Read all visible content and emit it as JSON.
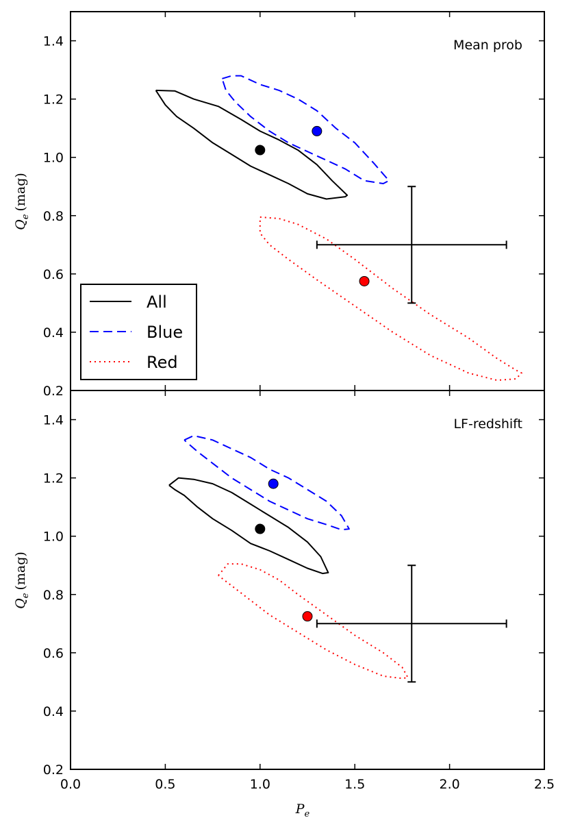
{
  "chart_data": [
    {
      "type": "scatter",
      "title": "Mean prob",
      "xlabel": "",
      "ylabel": "Q_e (mag)",
      "ylabel_main": "Q",
      "ylabel_sub": "e",
      "ylabel_unit": "(mag)",
      "xlim": [
        0.0,
        2.5
      ],
      "ylim": [
        0.2,
        1.5
      ],
      "x_ticks": [],
      "y_ticks": [
        "0.2",
        "0.4",
        "0.6",
        "0.8",
        "1.0",
        "1.2",
        "1.4"
      ],
      "legend": {
        "position": "lower-left",
        "entries": [
          {
            "label": "All",
            "style": "solid",
            "color": "#000000"
          },
          {
            "label": "Blue",
            "style": "dashed",
            "color": "#0000ff"
          },
          {
            "label": "Red",
            "style": "dotted",
            "color": "#ff0000"
          }
        ]
      },
      "series": [
        {
          "name": "All",
          "style": "solid",
          "color": "#000000",
          "point": [
            1.0,
            1.025
          ],
          "contour": [
            [
              0.45,
              1.23
            ],
            [
              0.55,
              1.228
            ],
            [
              0.65,
              1.2
            ],
            [
              0.78,
              1.175
            ],
            [
              0.9,
              1.13
            ],
            [
              1.0,
              1.09
            ],
            [
              1.1,
              1.06
            ],
            [
              1.2,
              1.025
            ],
            [
              1.3,
              0.975
            ],
            [
              1.38,
              0.92
            ],
            [
              1.46,
              0.87
            ],
            [
              1.45,
              0.865
            ],
            [
              1.35,
              0.857
            ],
            [
              1.25,
              0.875
            ],
            [
              1.15,
              0.91
            ],
            [
              1.05,
              0.94
            ],
            [
              0.95,
              0.97
            ],
            [
              0.85,
              1.01
            ],
            [
              0.75,
              1.05
            ],
            [
              0.65,
              1.1
            ],
            [
              0.56,
              1.14
            ],
            [
              0.5,
              1.18
            ],
            [
              0.45,
              1.23
            ]
          ]
        },
        {
          "name": "Blue",
          "style": "dashed",
          "color": "#0000ff",
          "point": [
            1.3,
            1.09
          ],
          "contour": [
            [
              0.8,
              1.27
            ],
            [
              0.85,
              1.28
            ],
            [
              0.9,
              1.28
            ],
            [
              1.0,
              1.25
            ],
            [
              1.1,
              1.23
            ],
            [
              1.2,
              1.2
            ],
            [
              1.3,
              1.16
            ],
            [
              1.4,
              1.1
            ],
            [
              1.5,
              1.05
            ],
            [
              1.6,
              0.98
            ],
            [
              1.68,
              0.92
            ],
            [
              1.65,
              0.91
            ],
            [
              1.55,
              0.92
            ],
            [
              1.45,
              0.96
            ],
            [
              1.35,
              0.99
            ],
            [
              1.25,
              1.02
            ],
            [
              1.15,
              1.05
            ],
            [
              1.05,
              1.09
            ],
            [
              0.95,
              1.14
            ],
            [
              0.87,
              1.19
            ],
            [
              0.82,
              1.23
            ],
            [
              0.8,
              1.27
            ]
          ]
        },
        {
          "name": "Red",
          "style": "dotted",
          "color": "#ff0000",
          "point": [
            1.55,
            0.575
          ],
          "contour": [
            [
              1.0,
              0.795
            ],
            [
              1.1,
              0.79
            ],
            [
              1.2,
              0.77
            ],
            [
              1.35,
              0.72
            ],
            [
              1.5,
              0.65
            ],
            [
              1.7,
              0.55
            ],
            [
              1.9,
              0.46
            ],
            [
              2.1,
              0.38
            ],
            [
              2.25,
              0.31
            ],
            [
              2.35,
              0.27
            ],
            [
              2.38,
              0.26
            ],
            [
              2.35,
              0.24
            ],
            [
              2.25,
              0.235
            ],
            [
              2.1,
              0.26
            ],
            [
              1.9,
              0.32
            ],
            [
              1.7,
              0.4
            ],
            [
              1.5,
              0.49
            ],
            [
              1.3,
              0.58
            ],
            [
              1.15,
              0.65
            ],
            [
              1.05,
              0.7
            ],
            [
              1.0,
              0.74
            ],
            [
              1.0,
              0.795
            ]
          ]
        }
      ],
      "error_bar": {
        "x": 1.8,
        "y": 0.7,
        "x_range": [
          1.3,
          2.3
        ],
        "y_range": [
          0.5,
          0.9
        ]
      }
    },
    {
      "type": "scatter",
      "title": "LF-redshift",
      "xlabel": "P_e",
      "xlabel_main": "P",
      "xlabel_sub": "e",
      "ylabel": "Q_e (mag)",
      "ylabel_main": "Q",
      "ylabel_sub": "e",
      "ylabel_unit": "(mag)",
      "xlim": [
        0.0,
        2.5
      ],
      "ylim": [
        0.2,
        1.5
      ],
      "x_ticks": [
        "0.0",
        "0.5",
        "1.0",
        "1.5",
        "2.0",
        "2.5"
      ],
      "y_ticks": [
        "0.2",
        "0.4",
        "0.6",
        "0.8",
        "1.0",
        "1.2",
        "1.4"
      ],
      "series": [
        {
          "name": "All",
          "style": "solid",
          "color": "#000000",
          "point": [
            1.0,
            1.025
          ],
          "contour": [
            [
              0.52,
              1.175
            ],
            [
              0.57,
              1.2
            ],
            [
              0.65,
              1.195
            ],
            [
              0.75,
              1.18
            ],
            [
              0.85,
              1.15
            ],
            [
              0.95,
              1.11
            ],
            [
              1.05,
              1.07
            ],
            [
              1.15,
              1.03
            ],
            [
              1.25,
              0.98
            ],
            [
              1.32,
              0.93
            ],
            [
              1.36,
              0.875
            ],
            [
              1.33,
              0.872
            ],
            [
              1.25,
              0.89
            ],
            [
              1.15,
              0.92
            ],
            [
              1.05,
              0.95
            ],
            [
              0.95,
              0.975
            ],
            [
              0.85,
              1.02
            ],
            [
              0.75,
              1.06
            ],
            [
              0.67,
              1.1
            ],
            [
              0.6,
              1.14
            ],
            [
              0.55,
              1.16
            ],
            [
              0.52,
              1.175
            ]
          ]
        },
        {
          "name": "Blue",
          "style": "dashed",
          "color": "#0000ff",
          "point": [
            1.07,
            1.18
          ],
          "contour": [
            [
              0.6,
              1.33
            ],
            [
              0.65,
              1.345
            ],
            [
              0.75,
              1.33
            ],
            [
              0.85,
              1.3
            ],
            [
              0.95,
              1.27
            ],
            [
              1.05,
              1.23
            ],
            [
              1.15,
              1.2
            ],
            [
              1.25,
              1.16
            ],
            [
              1.35,
              1.12
            ],
            [
              1.43,
              1.07
            ],
            [
              1.47,
              1.025
            ],
            [
              1.43,
              1.022
            ],
            [
              1.35,
              1.04
            ],
            [
              1.25,
              1.06
            ],
            [
              1.15,
              1.09
            ],
            [
              1.05,
              1.12
            ],
            [
              0.95,
              1.16
            ],
            [
              0.85,
              1.2
            ],
            [
              0.75,
              1.25
            ],
            [
              0.67,
              1.29
            ],
            [
              0.6,
              1.33
            ]
          ]
        },
        {
          "name": "Red",
          "style": "dotted",
          "color": "#ff0000",
          "point": [
            1.25,
            0.725
          ],
          "contour": [
            [
              0.78,
              0.865
            ],
            [
              0.83,
              0.905
            ],
            [
              0.9,
              0.905
            ],
            [
              1.0,
              0.885
            ],
            [
              1.1,
              0.85
            ],
            [
              1.2,
              0.8
            ],
            [
              1.35,
              0.73
            ],
            [
              1.5,
              0.66
            ],
            [
              1.65,
              0.6
            ],
            [
              1.75,
              0.55
            ],
            [
              1.78,
              0.515
            ],
            [
              1.75,
              0.512
            ],
            [
              1.65,
              0.52
            ],
            [
              1.5,
              0.56
            ],
            [
              1.35,
              0.61
            ],
            [
              1.2,
              0.67
            ],
            [
              1.05,
              0.73
            ],
            [
              0.95,
              0.78
            ],
            [
              0.85,
              0.83
            ],
            [
              0.78,
              0.865
            ]
          ]
        }
      ],
      "error_bar": {
        "x": 1.8,
        "y": 0.7,
        "x_range": [
          1.3,
          2.3
        ],
        "y_range": [
          0.5,
          0.9
        ]
      }
    }
  ]
}
